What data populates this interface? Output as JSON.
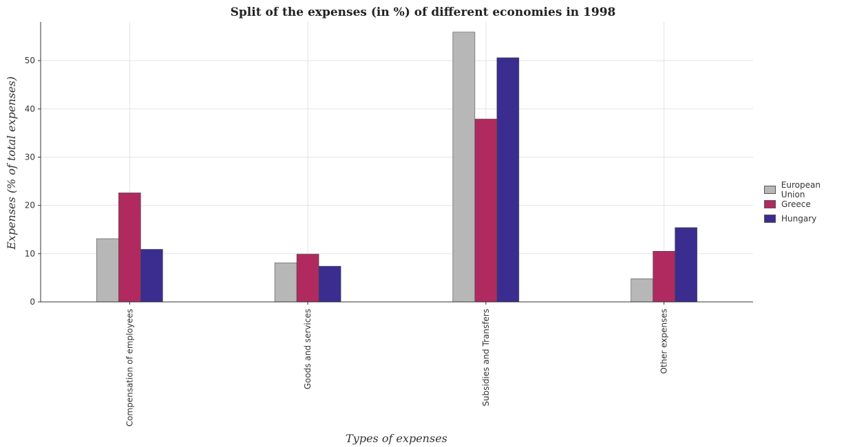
{
  "chart_data": {
    "type": "bar",
    "title": "Split of the expenses (in %) of different economies in 1998",
    "xlabel": "Types of expenses",
    "ylabel": "Expenses (% of total expenses)",
    "categories": [
      "Compensation of employees",
      "Goods and services",
      "Subsidies and Transfers",
      "Other expenses"
    ],
    "series": [
      {
        "name": "European Union",
        "color": "#b7b7b7",
        "values": [
          13.1,
          8.1,
          55.9,
          4.8
        ]
      },
      {
        "name": "Greece",
        "color": "#b02a5f",
        "values": [
          22.6,
          9.9,
          37.9,
          10.5
        ]
      },
      {
        "name": "Hungary",
        "color": "#3a2d8f",
        "values": [
          10.9,
          7.4,
          50.6,
          15.4
        ]
      }
    ],
    "ylim": [
      0,
      58
    ],
    "yticks": [
      0,
      10,
      20,
      30,
      40,
      50
    ],
    "grid": true,
    "legend_position": "right"
  }
}
